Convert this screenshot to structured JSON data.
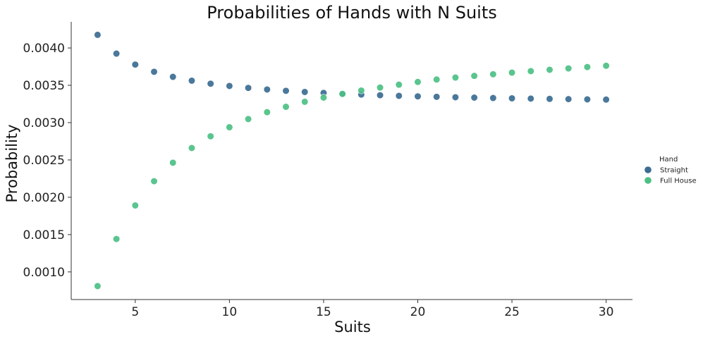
{
  "chart_data": {
    "type": "scatter",
    "title": "Probabilities of Hands with N Suits",
    "xlabel": "Suits",
    "ylabel": "Probability",
    "xlim": [
      1.6,
      31.4
    ],
    "ylim": [
      0.00063,
      0.00435
    ],
    "x_ticks": [
      5,
      10,
      15,
      20,
      25,
      30
    ],
    "x_tick_labels": [
      "5",
      "10",
      "15",
      "20",
      "25",
      "30"
    ],
    "y_ticks": [
      0.001,
      0.0015,
      0.002,
      0.0025,
      0.003,
      0.0035,
      0.004
    ],
    "y_tick_labels": [
      "0.0010",
      "0.0015",
      "0.0020",
      "0.0025",
      "0.0030",
      "0.0035",
      "0.0040"
    ],
    "grid": false,
    "legend": {
      "title": "Hand",
      "placement": "right"
    },
    "x": [
      3,
      4,
      5,
      6,
      7,
      8,
      9,
      10,
      11,
      12,
      13,
      14,
      15,
      16,
      17,
      18,
      19,
      20,
      21,
      22,
      23,
      24,
      25,
      26,
      27,
      28,
      29,
      30
    ],
    "series": [
      {
        "name": "Straight",
        "color": "#3b6c93",
        "values": [
          0.004176,
          0.003925,
          0.003778,
          0.003681,
          0.003613,
          0.003562,
          0.003522,
          0.003491,
          0.003465,
          0.003444,
          0.003426,
          0.003411,
          0.003398,
          0.003386,
          0.003376,
          0.003367,
          0.003359,
          0.003352,
          0.003346,
          0.00334,
          0.003335,
          0.00333,
          0.003326,
          0.003322,
          0.003318,
          0.003315,
          0.003312,
          0.003309
        ]
      },
      {
        "name": "Full House",
        "color": "#4cc084",
        "values": [
          0.00081,
          0.001441,
          0.001891,
          0.002215,
          0.002463,
          0.00266,
          0.002817,
          0.002938,
          0.003048,
          0.00314,
          0.003212,
          0.003279,
          0.003335,
          0.003385,
          0.00343,
          0.00347,
          0.003508,
          0.003545,
          0.003578,
          0.003604,
          0.003626,
          0.003648,
          0.00367,
          0.00369,
          0.003708,
          0.003726,
          0.003745,
          0.003762
        ]
      }
    ]
  }
}
